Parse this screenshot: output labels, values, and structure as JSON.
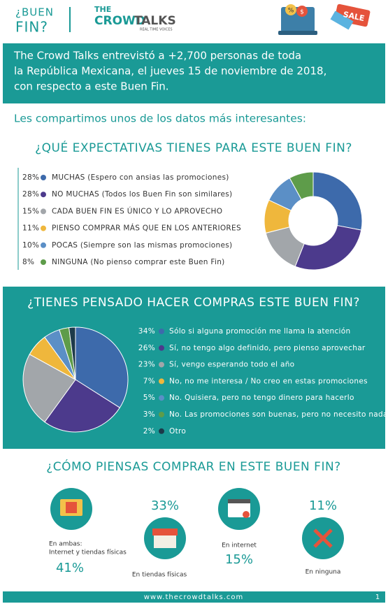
{
  "header": {
    "tag_line1": "¿BUEN",
    "tag_line2": "FIN?",
    "logo_top": "THE",
    "logo_left": "CROWD",
    "logo_right": "TALKS",
    "logo_sub": "REAL TIME VOICES",
    "icon_percent": "%",
    "icon_dollar": "$",
    "icon_sale": "SALE"
  },
  "intro": [
    "The Crowd Talks entrevistó a +2,700 personas de toda",
    "la República Mexicana, el jueves 15 de noviembre de 2018,",
    "con respecto a este Buen Fin."
  ],
  "subtitle": "Les compartimos unos de los datos más interesantes:",
  "chart_data": [
    {
      "type": "donut",
      "title": "¿QUÉ EXPECTATIVAS TIENES PARA ESTE BUEN FIN?",
      "categories": [
        "MUCHAS (Espero con ansias las promociones)",
        "NO MUCHAS (Todos los Buen Fin son similares)",
        "CADA BUEN FIN ES ÚNICO Y LO APROVECHO",
        "PIENSO COMPRAR MÁS QUE EN LOS ANTERIORES",
        "POCAS (Siempre son las mismas promociones)",
        "NINGUNA (No pienso comprar este Buen Fin)"
      ],
      "values": [
        28,
        28,
        15,
        11,
        10,
        8
      ],
      "value_labels": [
        "28%",
        "28%",
        "15%",
        "11%",
        "10%",
        "8%"
      ],
      "colors": [
        "#3d6aab",
        "#4c3a8c",
        "#a2a6aa",
        "#efb73c",
        "#5b8fc6",
        "#5e9c4a"
      ]
    },
    {
      "type": "pie",
      "title": "¿TIENES PENSADO HACER COMPRAS ESTE BUEN FIN?",
      "categories": [
        "Sólo si alguna promoción me llama la atención",
        "Sí, no tengo algo definido, pero pienso aprovechar",
        "Sí, vengo esperando todo el año",
        "No, no me interesa / No creo en estas promociones",
        "No. Quisiera, pero no tengo dinero para hacerlo",
        "No. Las promociones son buenas, pero no necesito nada",
        "Otro"
      ],
      "values": [
        34,
        26,
        23,
        7,
        5,
        3,
        2
      ],
      "value_labels": [
        "34%",
        "26%",
        "23%",
        "7%",
        "5%",
        "3%",
        "2%"
      ],
      "colors": [
        "#3d6aab",
        "#4c3a8c",
        "#a2a6aa",
        "#efb73c",
        "#5b8fc6",
        "#5e9c4a",
        "#1d3a4a"
      ]
    }
  ],
  "how_to_buy": {
    "title": "¿CÓMO PIENSAS COMPRAR EN ESTE BUEN FIN?",
    "items": [
      {
        "label_1": "En ambas:",
        "label_2": "Internet y tiendas físicas",
        "percent": "41%"
      },
      {
        "label_1": "En tiendas físicas",
        "percent": "33%"
      },
      {
        "label_1": "En internet",
        "percent": "15%"
      },
      {
        "label_1": "En ninguna",
        "percent": "11%"
      }
    ]
  },
  "footer": {
    "url": "www.thecrowdtalks.com",
    "page": "1"
  }
}
